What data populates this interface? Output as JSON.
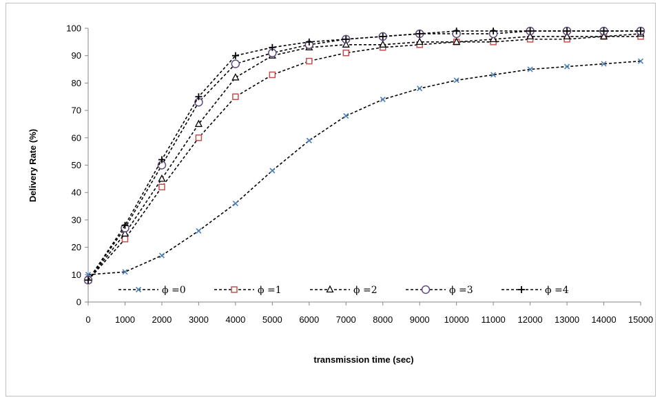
{
  "chart_data": {
    "type": "line",
    "title": "",
    "xlabel": "transmission time (sec)",
    "ylabel": "Delivery Rate (%)",
    "xlim": [
      0,
      15000
    ],
    "ylim": [
      0,
      100
    ],
    "x": [
      0,
      1000,
      2000,
      3000,
      4000,
      5000,
      6000,
      7000,
      8000,
      9000,
      10000,
      11000,
      12000,
      13000,
      14000,
      15000
    ],
    "x_ticks": [
      "0",
      "1000",
      "2000",
      "3000",
      "4000",
      "5000",
      "6000",
      "7000",
      "8000",
      "9000",
      "10000",
      "11000",
      "12000",
      "13000",
      "14000",
      "15000"
    ],
    "y_ticks": [
      "0",
      "10",
      "20",
      "30",
      "40",
      "50",
      "60",
      "70",
      "80",
      "90",
      "100"
    ],
    "grid": false,
    "legend_position": "bottom-inside",
    "series": [
      {
        "name": "ϕ =0",
        "marker": "x",
        "marker_color": "#4a7ebb",
        "values": [
          10,
          11,
          17,
          26,
          36,
          48,
          59,
          68,
          74,
          78,
          81,
          83,
          85,
          86,
          87,
          88
        ]
      },
      {
        "name": "ϕ =1",
        "marker": "square",
        "marker_color": "#c0504d",
        "values": [
          8,
          23,
          42,
          60,
          75,
          83,
          88,
          91,
          93,
          94,
          95,
          95,
          96,
          96,
          97,
          97
        ]
      },
      {
        "name": "ϕ =2",
        "marker": "triangle",
        "marker_color": "#000000",
        "values": [
          8,
          25,
          45,
          65,
          82,
          90,
          93,
          94,
          94,
          95,
          95,
          96,
          97,
          97,
          97,
          98
        ]
      },
      {
        "name": "ϕ =3",
        "marker": "circle",
        "marker_color": "#604a7b",
        "values": [
          8,
          27,
          50,
          73,
          87,
          91,
          94,
          96,
          97,
          98,
          98,
          98,
          99,
          99,
          99,
          99
        ]
      },
      {
        "name": "ϕ =4",
        "marker": "plus",
        "marker_color": "#000000",
        "values": [
          8,
          28,
          52,
          75,
          90,
          93,
          95,
          96,
          97,
          98,
          99,
          99,
          99,
          99,
          99,
          99
        ]
      }
    ]
  }
}
